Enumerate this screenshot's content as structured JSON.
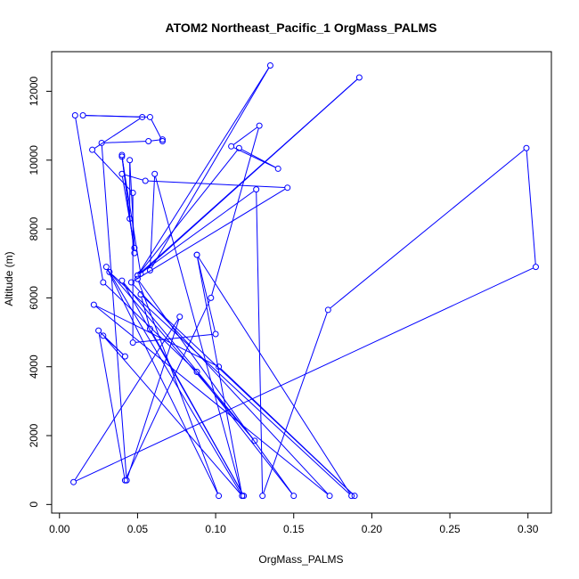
{
  "chart_data": {
    "type": "line",
    "title": "ATOM2 Northeast_Pacific_1 OrgMass_PALMS",
    "xlabel": "OrgMass_PALMS",
    "ylabel": "Altitude (m)",
    "xlim": [
      -0.005,
      0.315
    ],
    "ylim": [
      -250,
      13150
    ],
    "x_ticks": [
      0.0,
      0.05,
      0.1,
      0.15,
      0.2,
      0.25,
      0.3
    ],
    "x_tick_labels": [
      "0.00",
      "0.05",
      "0.10",
      "0.15",
      "0.20",
      "0.25",
      "0.30"
    ],
    "y_ticks": [
      0,
      2000,
      4000,
      6000,
      8000,
      10000,
      12000
    ],
    "y_tick_labels": [
      "0",
      "2000",
      "4000",
      "6000",
      "8000",
      "10000",
      "12000"
    ],
    "colors": {
      "series": "#0000ff",
      "axis": "#000000"
    },
    "grid": false,
    "series": [
      {
        "marker": "open-circle",
        "points": [
          [
            0.01,
            11300
          ],
          [
            0.028,
            6450
          ],
          [
            0.088,
            3850
          ],
          [
            0.15,
            250
          ],
          [
            0.05,
            6550
          ],
          [
            0.102,
            250
          ],
          [
            0.03,
            6900
          ],
          [
            0.117,
            250
          ],
          [
            0.028,
            4900
          ],
          [
            0.042,
            4300
          ],
          [
            0.025,
            5050
          ],
          [
            0.042,
            700
          ],
          [
            0.097,
            6000
          ],
          [
            0.128,
            11000
          ],
          [
            0.11,
            10400
          ],
          [
            0.14,
            9750
          ],
          [
            0.115,
            10350
          ],
          [
            0.05,
            6650
          ],
          [
            0.192,
            12400
          ],
          [
            0.052,
            6700
          ],
          [
            0.04,
            10100
          ],
          [
            0.048,
            7300
          ],
          [
            0.04,
            10150
          ],
          [
            0.045,
            8300
          ],
          [
            0.045,
            10000
          ],
          [
            0.048,
            7450
          ],
          [
            0.04,
            9600
          ],
          [
            0.055,
            9400
          ],
          [
            0.146,
            9200
          ],
          [
            0.046,
            6450
          ],
          [
            0.173,
            250
          ],
          [
            0.022,
            5800
          ],
          [
            0.102,
            4000
          ],
          [
            0.189,
            250
          ],
          [
            0.052,
            6100
          ],
          [
            0.058,
            5100
          ],
          [
            0.118,
            250
          ],
          [
            0.04,
            6500
          ],
          [
            0.125,
            1850
          ],
          [
            0.032,
            6750
          ],
          [
            0.187,
            250
          ],
          [
            0.088,
            7250
          ],
          [
            0.117,
            250
          ],
          [
            0.061,
            9600
          ],
          [
            0.058,
            6800
          ],
          [
            0.135,
            12750
          ],
          [
            0.05,
            6650
          ],
          [
            0.126,
            9150
          ],
          [
            0.13,
            250
          ],
          [
            0.172,
            5650
          ],
          [
            0.299,
            10350
          ],
          [
            0.305,
            6900
          ],
          [
            0.009,
            650
          ],
          [
            0.077,
            5450
          ],
          [
            0.043,
            700
          ],
          [
            0.027,
            10500
          ],
          [
            0.057,
            10550
          ],
          [
            0.066,
            10600
          ],
          [
            0.066,
            10550
          ],
          [
            0.058,
            11250
          ],
          [
            0.015,
            11300
          ],
          [
            0.053,
            11250
          ],
          [
            0.021,
            10300
          ],
          [
            0.047,
            9050
          ],
          [
            0.047,
            4700
          ],
          [
            0.1,
            4950
          ],
          [
            0.088,
            7250
          ]
        ]
      }
    ]
  }
}
